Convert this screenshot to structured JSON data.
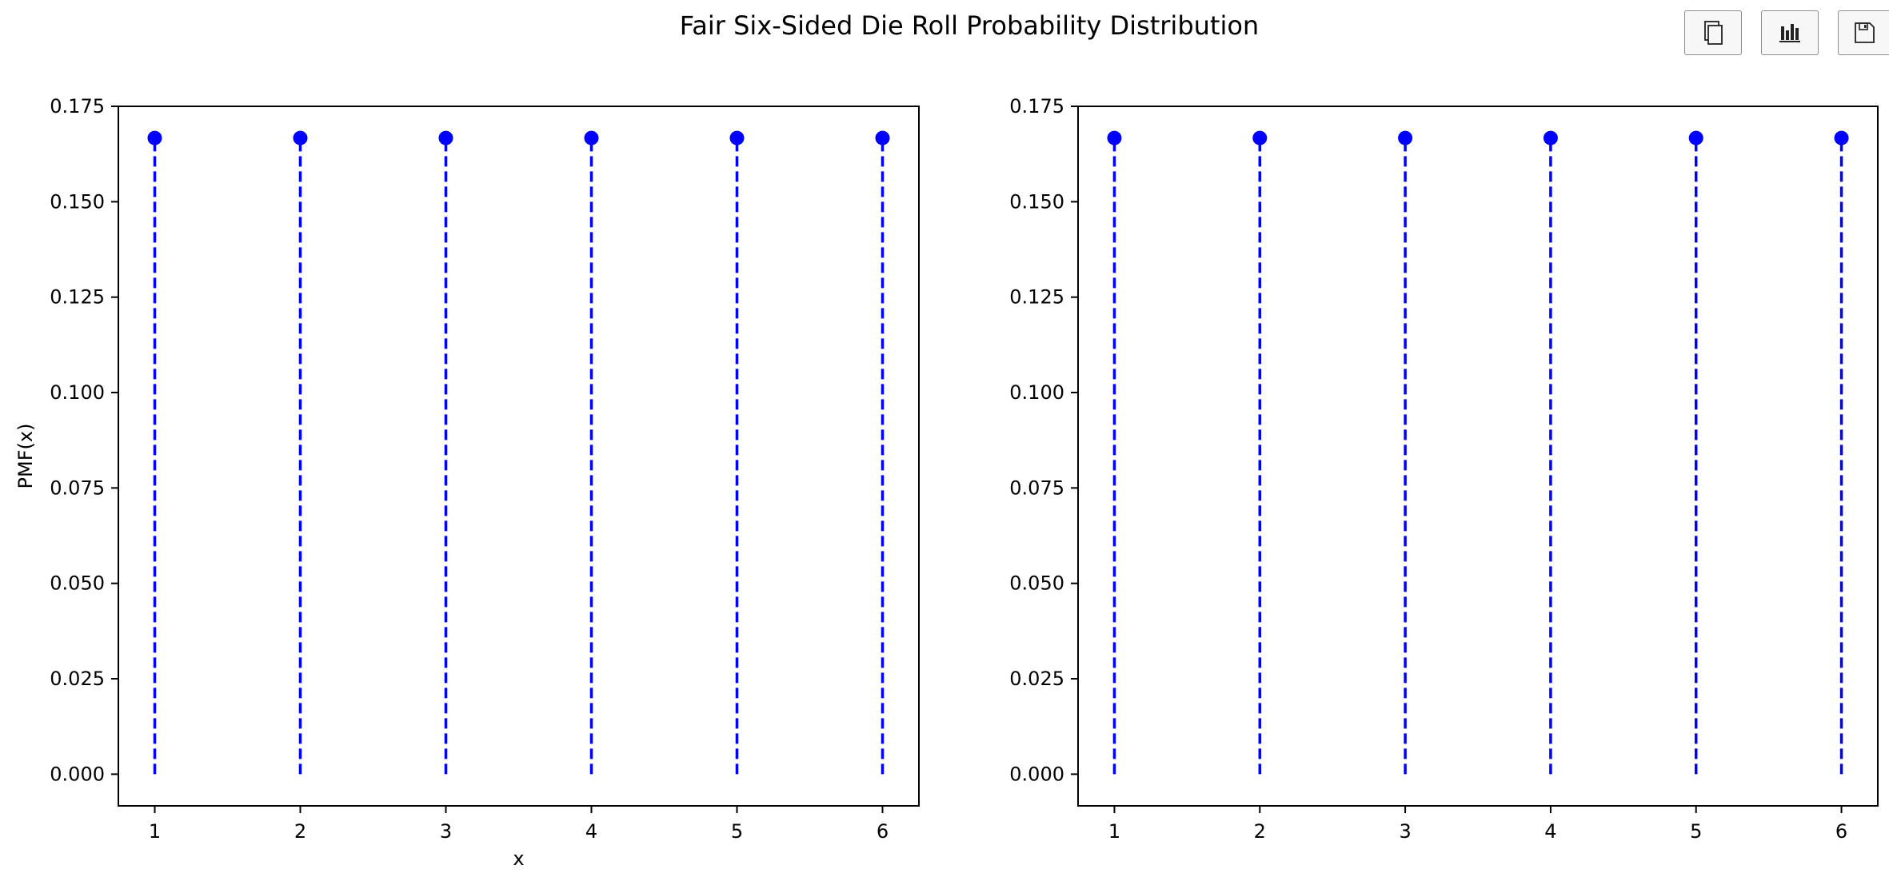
{
  "figure": {
    "suptitle": "Fair Six-Sided Die Roll Probability Distribution"
  },
  "toolbar": {
    "buttons": [
      {
        "name": "copy-button",
        "icon": "copy-icon"
      },
      {
        "name": "chart-button",
        "icon": "bar-chart-icon"
      },
      {
        "name": "save-button",
        "icon": "save-icon"
      }
    ]
  },
  "chart_data": [
    {
      "type": "stem",
      "title": "",
      "xlabel": "x",
      "ylabel": "PMF(x)",
      "x": [
        1,
        2,
        3,
        4,
        5,
        6
      ],
      "values": [
        0.1667,
        0.1667,
        0.1667,
        0.1667,
        0.1667,
        0.1667
      ],
      "xlim": [
        0.75,
        6.25
      ],
      "ylim": [
        -0.0083,
        0.175
      ],
      "xticks": [
        "1",
        "2",
        "3",
        "4",
        "5",
        "6"
      ],
      "yticks": [
        "0.000",
        "0.025",
        "0.050",
        "0.075",
        "0.100",
        "0.125",
        "0.150",
        "0.175"
      ],
      "color": "#0000ff",
      "line_style": "dashed",
      "grid": false
    },
    {
      "type": "stem",
      "title": "",
      "xlabel": "",
      "ylabel": "",
      "x": [
        1,
        2,
        3,
        4,
        5,
        6
      ],
      "values": [
        0.1667,
        0.1667,
        0.1667,
        0.1667,
        0.1667,
        0.1667
      ],
      "xlim": [
        0.75,
        6.25
      ],
      "ylim": [
        -0.0083,
        0.175
      ],
      "xticks": [
        "1",
        "2",
        "3",
        "4",
        "5",
        "6"
      ],
      "yticks": [
        "0.000",
        "0.025",
        "0.050",
        "0.075",
        "0.100",
        "0.125",
        "0.150",
        "0.175"
      ],
      "color": "#0000ff",
      "line_style": "dashed",
      "grid": false
    }
  ]
}
